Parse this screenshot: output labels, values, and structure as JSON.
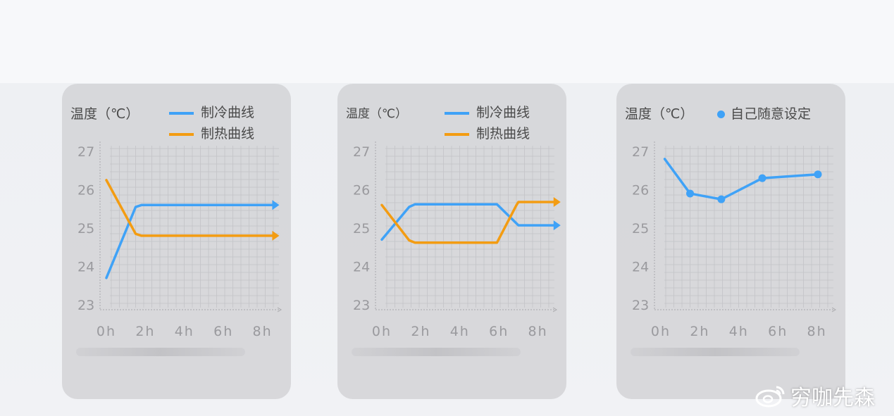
{
  "colors": {
    "cooling": "#3fa2f7",
    "heating": "#f39c12",
    "custom": "#3fa2f7",
    "grid": "#c4c4c8",
    "tick": "#9a9a9e"
  },
  "watermark": "穷咖先森",
  "chart_data": [
    {
      "type": "line",
      "title": "温度（℃）",
      "ylim": [
        23,
        27
      ],
      "yticks": [
        "23",
        "24",
        "25",
        "26",
        "27"
      ],
      "xticks": [
        "0h",
        "2h",
        "4h",
        "6h",
        "8h"
      ],
      "grid": true,
      "legend": "top-right",
      "series": [
        {
          "name": "制冷曲线",
          "color_key": "cooling",
          "arrow": true,
          "points": [
            [
              0,
              23.7
            ],
            [
              1.5,
              25.55
            ],
            [
              1.8,
              25.6
            ],
            [
              8.5,
              25.6
            ]
          ]
        },
        {
          "name": "制热曲线",
          "color_key": "heating",
          "arrow": true,
          "points": [
            [
              0,
              26.25
            ],
            [
              1.5,
              24.85
            ],
            [
              1.8,
              24.8
            ],
            [
              8.5,
              24.8
            ]
          ]
        }
      ]
    },
    {
      "type": "line",
      "title": "温度（℃）",
      "ylim": [
        23,
        27
      ],
      "yticks": [
        "23",
        "24",
        "25",
        "26",
        "27"
      ],
      "xticks": [
        "0h",
        "2h",
        "4h",
        "6h",
        "8h"
      ],
      "grid": true,
      "legend": "top-right",
      "series": [
        {
          "name": "制冷曲线",
          "color_key": "cooling",
          "arrow": true,
          "points": [
            [
              0,
              24.7
            ],
            [
              1.4,
              25.55
            ],
            [
              1.7,
              25.62
            ],
            [
              5.9,
              25.62
            ],
            [
              7.0,
              25.07
            ],
            [
              8.8,
              25.07
            ]
          ]
        },
        {
          "name": "制热曲线",
          "color_key": "heating",
          "arrow": true,
          "points": [
            [
              0,
              25.6
            ],
            [
              1.4,
              24.68
            ],
            [
              1.7,
              24.62
            ],
            [
              5.9,
              24.62
            ],
            [
              6.9,
              25.6
            ],
            [
              7.0,
              25.68
            ],
            [
              8.8,
              25.68
            ]
          ]
        }
      ]
    },
    {
      "type": "line",
      "title": "温度（℃）",
      "ylim": [
        23,
        27
      ],
      "yticks": [
        "23",
        "24",
        "25",
        "26",
        "27"
      ],
      "xticks": [
        "0h",
        "2h",
        "4h",
        "6h",
        "8h"
      ],
      "grid": true,
      "legend": "top-right",
      "series": [
        {
          "name": "自己随意设定",
          "color_key": "custom",
          "markers": true,
          "points": [
            [
              0.2,
              26.8
            ],
            [
              1.5,
              25.9
            ],
            [
              3.1,
              25.75
            ],
            [
              5.2,
              26.3
            ],
            [
              8.05,
              26.4
            ]
          ]
        }
      ]
    }
  ]
}
